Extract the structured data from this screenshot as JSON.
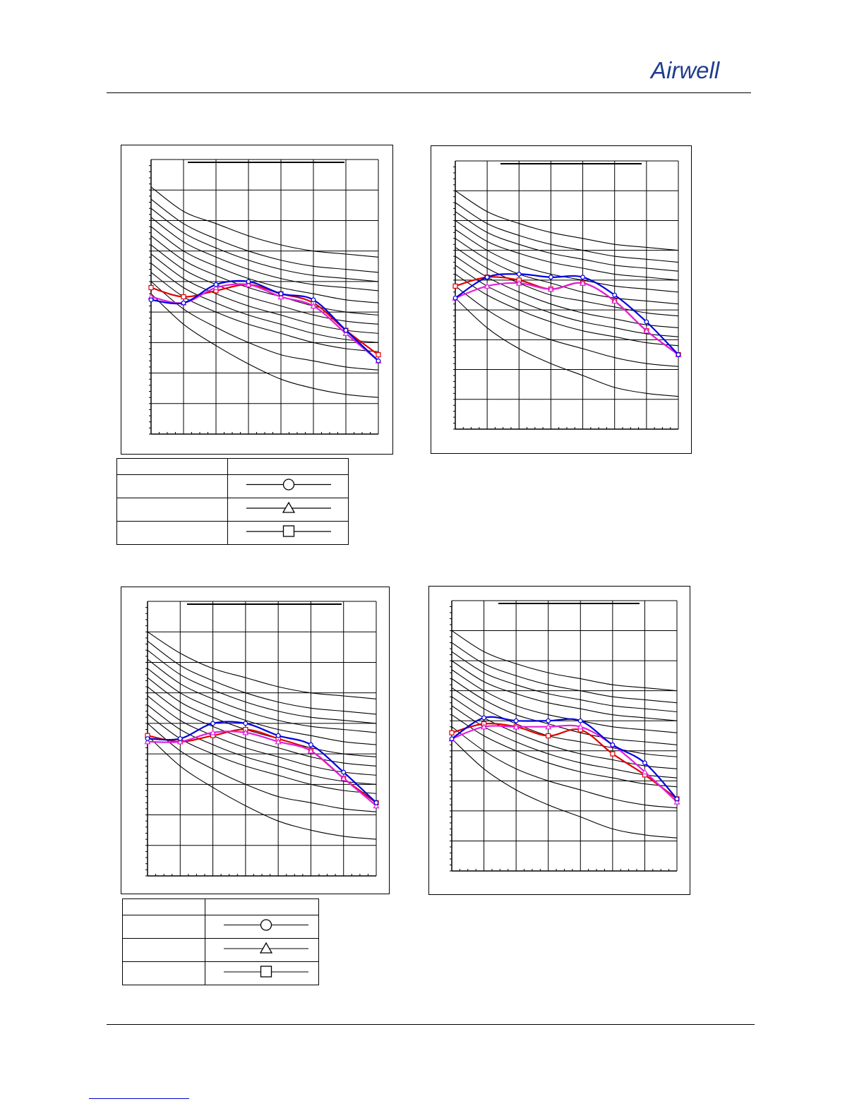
{
  "header": {
    "brand": "Airwell",
    "brand_color": "#1f3c8c"
  },
  "colors": {
    "series_circle": "#0000e0",
    "series_square": "#e00000",
    "series_triangle": "#e020e0",
    "reference_curves": "#000000",
    "grid": "#000000"
  },
  "legend_symbols": [
    "circle-marker-icon",
    "triangle-marker-icon",
    "square-marker-icon"
  ],
  "chart_data": [
    {
      "type": "line",
      "title": "",
      "grid": true,
      "x": [
        0,
        1,
        2,
        3,
        4,
        5,
        6,
        7
      ],
      "ylim": [
        0,
        9
      ],
      "series": [
        {
          "marker": "circle",
          "values": [
            4.4,
            4.3,
            4.9,
            5.0,
            4.6,
            4.4,
            3.4,
            2.4
          ]
        },
        {
          "marker": "triangle",
          "values": [
            4.5,
            4.3,
            4.8,
            4.9,
            4.5,
            4.2,
            3.3,
            2.4
          ]
        },
        {
          "marker": "square",
          "values": [
            4.8,
            4.5,
            4.7,
            4.9,
            4.6,
            4.3,
            3.4,
            2.6
          ]
        }
      ],
      "reference_curves": [
        [
          8.1,
          7.3,
          6.9,
          6.5,
          6.2,
          6.0,
          5.9,
          5.8
        ],
        [
          7.7,
          6.9,
          6.4,
          6.0,
          5.7,
          5.5,
          5.4,
          5.3
        ],
        [
          7.4,
          6.6,
          6.1,
          5.7,
          5.4,
          5.2,
          5.1,
          5.0
        ],
        [
          7.1,
          6.3,
          5.8,
          5.4,
          5.1,
          4.9,
          4.8,
          4.7
        ],
        [
          6.8,
          6.0,
          5.5,
          5.1,
          4.8,
          4.6,
          4.4,
          4.3
        ],
        [
          6.5,
          5.7,
          5.2,
          4.8,
          4.5,
          4.2,
          4.0,
          3.9
        ],
        [
          6.2,
          5.4,
          4.9,
          4.5,
          4.2,
          3.9,
          3.7,
          3.6
        ],
        [
          5.9,
          5.1,
          4.6,
          4.2,
          3.9,
          3.6,
          3.4,
          3.3
        ],
        [
          5.6,
          4.8,
          4.3,
          3.9,
          3.6,
          3.3,
          3.1,
          3.0
        ],
        [
          5.3,
          4.5,
          4.0,
          3.6,
          3.3,
          3.0,
          2.8,
          2.7
        ],
        [
          5.0,
          4.1,
          3.5,
          3.0,
          2.6,
          2.4,
          2.2,
          2.1
        ],
        [
          4.6,
          3.6,
          2.9,
          2.3,
          1.8,
          1.5,
          1.3,
          1.2
        ]
      ]
    },
    {
      "type": "line",
      "title": "",
      "grid": true,
      "x": [
        0,
        1,
        2,
        3,
        4,
        5,
        6,
        7
      ],
      "ylim": [
        0,
        9
      ],
      "series": [
        {
          "marker": "circle",
          "values": [
            4.4,
            5.1,
            5.2,
            5.1,
            5.1,
            4.5,
            3.6,
            2.5
          ]
        },
        {
          "marker": "triangle",
          "values": [
            4.4,
            4.8,
            4.9,
            4.7,
            4.9,
            4.3,
            3.3,
            2.5
          ]
        },
        {
          "marker": "square",
          "values": [
            4.8,
            5.1,
            5.0,
            4.7,
            4.9,
            4.3,
            3.3,
            2.5
          ]
        }
      ],
      "reference_curves": [
        [
          8.0,
          7.3,
          6.9,
          6.6,
          6.4,
          6.2,
          6.1,
          6.0
        ],
        [
          7.6,
          6.9,
          6.5,
          6.2,
          6.0,
          5.8,
          5.7,
          5.6
        ],
        [
          7.3,
          6.6,
          6.2,
          5.9,
          5.7,
          5.5,
          5.4,
          5.3
        ],
        [
          7.0,
          6.3,
          5.9,
          5.6,
          5.4,
          5.2,
          5.1,
          5.0
        ],
        [
          6.7,
          6.0,
          5.5,
          5.2,
          5.0,
          4.8,
          4.7,
          4.6
        ],
        [
          6.4,
          5.7,
          5.2,
          4.9,
          4.6,
          4.4,
          4.3,
          4.2
        ],
        [
          6.1,
          5.4,
          4.9,
          4.5,
          4.3,
          4.1,
          3.9,
          3.8
        ],
        [
          5.8,
          5.1,
          4.6,
          4.2,
          3.9,
          3.7,
          3.5,
          3.4
        ],
        [
          5.5,
          4.8,
          4.3,
          3.9,
          3.6,
          3.4,
          3.2,
          3.1
        ],
        [
          5.2,
          4.5,
          4.0,
          3.6,
          3.3,
          3.1,
          2.9,
          2.8
        ],
        [
          4.8,
          4.0,
          3.4,
          3.0,
          2.7,
          2.4,
          2.2,
          2.1
        ],
        [
          4.4,
          3.4,
          2.7,
          2.2,
          1.8,
          1.4,
          1.2,
          1.1
        ]
      ]
    },
    {
      "type": "line",
      "title": "",
      "grid": true,
      "x": [
        0,
        1,
        2,
        3,
        4,
        5,
        6,
        7
      ],
      "ylim": [
        0,
        9
      ],
      "series": [
        {
          "marker": "circle",
          "values": [
            4.5,
            4.5,
            5.0,
            5.0,
            4.6,
            4.3,
            3.4,
            2.4
          ]
        },
        {
          "marker": "triangle",
          "values": [
            4.4,
            4.4,
            4.7,
            4.7,
            4.4,
            4.1,
            3.2,
            2.3
          ]
        },
        {
          "marker": "square",
          "values": [
            4.6,
            4.4,
            4.6,
            4.8,
            4.5,
            4.1,
            3.2,
            2.4
          ]
        }
      ],
      "reference_curves": [
        [
          8.0,
          7.3,
          6.8,
          6.5,
          6.2,
          6.0,
          5.9,
          5.8
        ],
        [
          7.7,
          6.9,
          6.4,
          6.0,
          5.7,
          5.5,
          5.4,
          5.3
        ],
        [
          7.4,
          6.6,
          6.1,
          5.7,
          5.4,
          5.2,
          5.1,
          5.0
        ],
        [
          7.1,
          6.3,
          5.8,
          5.4,
          5.1,
          4.9,
          4.8,
          4.7
        ],
        [
          6.8,
          6.0,
          5.5,
          5.1,
          4.8,
          4.6,
          4.4,
          4.3
        ],
        [
          6.5,
          5.7,
          5.2,
          4.8,
          4.5,
          4.2,
          4.0,
          3.9
        ],
        [
          6.2,
          5.4,
          4.9,
          4.5,
          4.2,
          3.9,
          3.7,
          3.6
        ],
        [
          5.9,
          5.1,
          4.6,
          4.2,
          3.9,
          3.6,
          3.4,
          3.3
        ],
        [
          5.6,
          4.8,
          4.3,
          3.9,
          3.6,
          3.3,
          3.1,
          3.0
        ],
        [
          5.3,
          4.5,
          4.0,
          3.6,
          3.3,
          3.0,
          2.8,
          2.7
        ],
        [
          5.0,
          4.1,
          3.5,
          3.0,
          2.6,
          2.4,
          2.2,
          2.1
        ],
        [
          4.6,
          3.6,
          2.9,
          2.3,
          1.8,
          1.5,
          1.3,
          1.2
        ]
      ]
    },
    {
      "type": "line",
      "title": "",
      "grid": true,
      "x": [
        0,
        1,
        2,
        3,
        4,
        5,
        6,
        7
      ],
      "ylim": [
        0,
        9
      ],
      "series": [
        {
          "marker": "circle",
          "values": [
            4.4,
            5.1,
            5.0,
            5.0,
            5.0,
            4.2,
            3.6,
            2.4
          ]
        },
        {
          "marker": "triangle",
          "values": [
            4.4,
            4.8,
            4.8,
            4.8,
            4.8,
            4.2,
            3.3,
            2.3
          ]
        },
        {
          "marker": "square",
          "values": [
            4.6,
            4.9,
            4.8,
            4.5,
            4.7,
            3.9,
            3.2,
            2.4
          ]
        }
      ],
      "reference_curves": [
        [
          8.0,
          7.3,
          6.9,
          6.6,
          6.4,
          6.2,
          6.1,
          6.0
        ],
        [
          7.6,
          6.9,
          6.5,
          6.2,
          6.0,
          5.8,
          5.7,
          5.6
        ],
        [
          7.3,
          6.6,
          6.2,
          5.9,
          5.7,
          5.5,
          5.4,
          5.3
        ],
        [
          7.0,
          6.3,
          5.9,
          5.6,
          5.4,
          5.2,
          5.1,
          5.0
        ],
        [
          6.7,
          6.0,
          5.5,
          5.2,
          5.0,
          4.8,
          4.7,
          4.6
        ],
        [
          6.4,
          5.7,
          5.2,
          4.9,
          4.6,
          4.4,
          4.3,
          4.2
        ],
        [
          6.1,
          5.4,
          4.9,
          4.5,
          4.3,
          4.1,
          3.9,
          3.8
        ],
        [
          5.8,
          5.1,
          4.6,
          4.2,
          3.9,
          3.7,
          3.5,
          3.4
        ],
        [
          5.5,
          4.8,
          4.3,
          3.9,
          3.6,
          3.4,
          3.2,
          3.1
        ],
        [
          5.2,
          4.5,
          4.0,
          3.6,
          3.3,
          3.1,
          2.9,
          2.8
        ],
        [
          4.8,
          4.0,
          3.4,
          3.0,
          2.7,
          2.4,
          2.2,
          2.1
        ],
        [
          4.4,
          3.4,
          2.7,
          2.2,
          1.8,
          1.4,
          1.2,
          1.1
        ]
      ]
    }
  ]
}
